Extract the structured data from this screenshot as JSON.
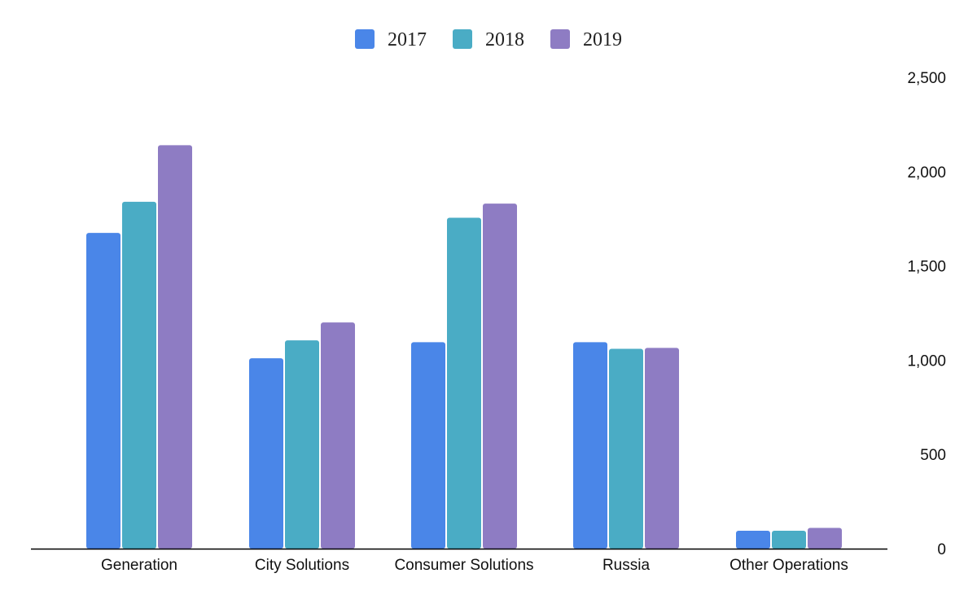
{
  "chart_data": {
    "type": "bar",
    "categories": [
      "Generation",
      "City Solutions",
      "Consumer Solutions",
      "Russia",
      "Other Operations"
    ],
    "series": [
      {
        "name": "2017",
        "color": "#4a86e8",
        "values": [
          1675,
          1010,
          1095,
          1095,
          95
        ]
      },
      {
        "name": "2018",
        "color": "#4aacc5",
        "values": [
          1840,
          1105,
          1755,
          1060,
          95
        ]
      },
      {
        "name": "2019",
        "color": "#8e7cc3",
        "values": [
          2140,
          1200,
          1830,
          1065,
          110
        ]
      }
    ],
    "ylim": [
      0,
      2500
    ],
    "yticks": [
      0,
      500,
      1000,
      1500,
      2000,
      2500
    ],
    "ytick_labels": [
      "0",
      "500",
      "1,000",
      "1,500",
      "2,000",
      "2,500"
    ],
    "y_axis_side": "right",
    "grid": false,
    "legend_position": "top-center",
    "title": "",
    "xlabel": "",
    "ylabel": ""
  }
}
